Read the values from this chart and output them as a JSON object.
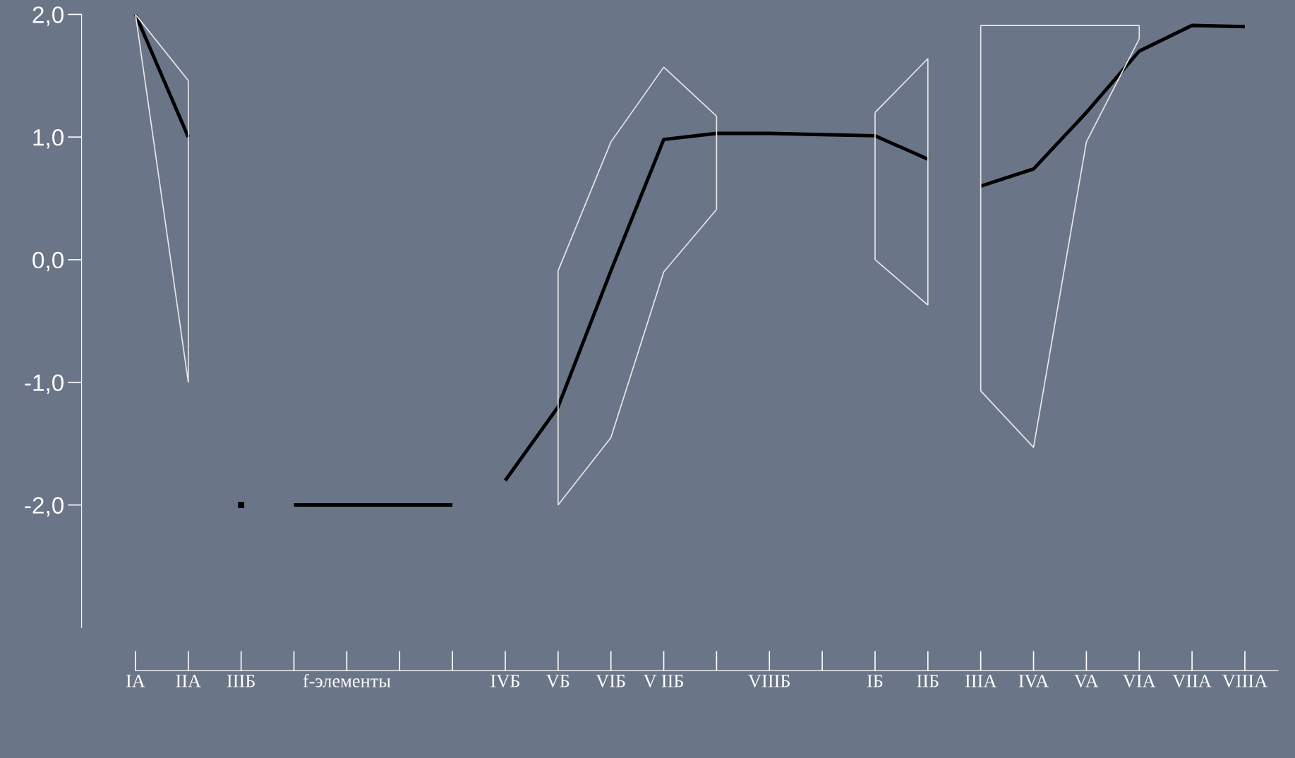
{
  "chart_data": {
    "type": "line",
    "categories": [
      "IA",
      "IIA",
      "IIIБ",
      null,
      "f-элементы",
      null,
      null,
      "IVБ",
      "VБ",
      "VIБ",
      "V IIБ",
      null,
      "VIIIБ",
      null,
      "IБ",
      "IIБ",
      "IIIA",
      "IVA",
      "VA",
      "VIA",
      "VIIA",
      "VIIIA"
    ],
    "series": [
      {
        "color": "#000000",
        "values": [
          2.0,
          1.0,
          null,
          null,
          null,
          null,
          null,
          null,
          null,
          null,
          null,
          null,
          null,
          null,
          null,
          null,
          null,
          null,
          null,
          null,
          null,
          null
        ]
      },
      {
        "type": "scatter",
        "marker": "square",
        "color": "#000000",
        "values": [
          null,
          null,
          -2.0,
          null,
          null,
          null,
          null,
          null,
          null,
          null,
          null,
          null,
          null,
          null,
          null,
          null,
          null,
          null,
          null,
          null,
          null,
          null
        ]
      },
      {
        "color": "#000000",
        "values": [
          null,
          null,
          null,
          -2.0,
          -2.0,
          -2.0,
          -2.0,
          null,
          null,
          null,
          null,
          null,
          null,
          null,
          null,
          null,
          null,
          null,
          null,
          null,
          null,
          null
        ]
      },
      {
        "color": "#000000",
        "values": [
          null,
          null,
          null,
          null,
          null,
          null,
          null,
          -1.8,
          -1.2,
          -0.09,
          0.98,
          1.03,
          1.03,
          1.02,
          1.01,
          0.82,
          null,
          null,
          null,
          null,
          null,
          null
        ]
      },
      {
        "color": "#000000",
        "values": [
          null,
          null,
          null,
          null,
          null,
          null,
          null,
          null,
          null,
          null,
          null,
          null,
          null,
          null,
          null,
          null,
          0.6,
          0.74,
          1.2,
          1.7,
          1.91,
          1.9
        ]
      },
      {
        "color": "#e8e8e8",
        "values": [
          2.0,
          1.46,
          null,
          null,
          null,
          null,
          null,
          null,
          null,
          null,
          null,
          null,
          null,
          null,
          null,
          null,
          null,
          null,
          null,
          null,
          null,
          null
        ],
        "errors": [
          null,
          [
            -1.0,
            1.46
          ],
          null,
          null,
          null,
          null,
          null,
          null,
          null,
          null,
          null,
          null,
          null,
          null,
          null,
          null,
          null,
          null,
          null,
          null,
          null,
          null
        ]
      },
      {
        "color": "#e8e8e8",
        "values": [
          2.0,
          -1.0,
          null,
          null,
          null,
          null,
          null,
          null,
          null,
          null,
          null,
          null,
          null,
          null,
          null,
          null,
          null,
          null,
          null,
          null,
          null,
          null
        ]
      },
      {
        "color": "#e8e8e8",
        "values": [
          null,
          null,
          null,
          null,
          null,
          null,
          null,
          null,
          -0.09,
          0.96,
          1.57,
          1.17,
          null,
          null,
          null,
          null,
          null,
          null,
          null,
          null,
          null,
          null
        ],
        "errors": [
          null,
          null,
          null,
          null,
          null,
          null,
          null,
          null,
          [
            -2.0,
            -0.09
          ],
          null,
          null,
          [
            0.41,
            1.17
          ],
          null,
          null,
          null,
          null,
          null,
          null,
          null,
          null,
          null,
          null
        ]
      },
      {
        "color": "#e8e8e8",
        "values": [
          null,
          null,
          null,
          null,
          null,
          null,
          null,
          null,
          -2.0,
          -1.45,
          -0.1,
          0.41,
          null,
          null,
          null,
          null,
          null,
          null,
          null,
          null,
          null,
          null
        ]
      },
      {
        "color": "#e8e8e8",
        "values": [
          null,
          null,
          null,
          null,
          null,
          null,
          null,
          null,
          null,
          null,
          null,
          null,
          null,
          null,
          1.2,
          1.64,
          null,
          null,
          null,
          null,
          null,
          null
        ],
        "errors": [
          null,
          null,
          null,
          null,
          null,
          null,
          null,
          null,
          null,
          null,
          null,
          null,
          null,
          null,
          [
            0.0,
            1.2
          ],
          [
            -0.37,
            1.64
          ],
          null,
          null,
          null,
          null,
          null,
          null
        ]
      },
      {
        "color": "#e8e8e8",
        "values": [
          null,
          null,
          null,
          null,
          null,
          null,
          null,
          null,
          null,
          null,
          null,
          null,
          null,
          null,
          0.0,
          -0.37,
          null,
          null,
          null,
          null,
          null,
          null
        ]
      },
      {
        "color": "#e8e8e8",
        "values": [
          null,
          null,
          null,
          null,
          null,
          null,
          null,
          null,
          null,
          null,
          null,
          null,
          null,
          null,
          null,
          null,
          1.91,
          1.91,
          1.91,
          1.91,
          null,
          null
        ],
        "errors": [
          null,
          null,
          null,
          null,
          null,
          null,
          null,
          null,
          null,
          null,
          null,
          null,
          null,
          null,
          null,
          null,
          [
            -1.07,
            1.91
          ],
          null,
          null,
          [
            1.8,
            1.91
          ],
          null,
          null
        ]
      },
      {
        "color": "#e8e8e8",
        "values": [
          null,
          null,
          null,
          null,
          null,
          null,
          null,
          null,
          null,
          null,
          null,
          null,
          null,
          null,
          null,
          null,
          -1.07,
          -1.53,
          0.96,
          1.8,
          null,
          null
        ]
      }
    ],
    "ylim": [
      -3.0,
      2.0
    ],
    "yticks": [
      {
        "value": 2,
        "label": "2,0"
      },
      {
        "value": 1,
        "label": "1,0"
      },
      {
        "value": 0,
        "label": "0,0"
      },
      {
        "value": -1,
        "label": "-1,0"
      },
      {
        "value": -2,
        "label": "-2,0"
      }
    ],
    "grid": false,
    "legend": false,
    "marker": "none",
    "line_style": "solid"
  }
}
